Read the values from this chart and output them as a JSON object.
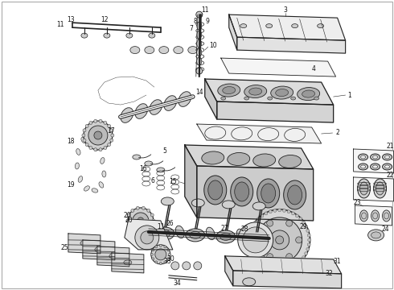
{
  "fig_width": 4.9,
  "fig_height": 3.6,
  "dpi": 100,
  "background_color": "#ffffff",
  "line_color": "#222222",
  "label_color": "#111111",
  "label_fontsize": 5.5,
  "border_color": "#aaaaaa",
  "border_lw": 0.8
}
